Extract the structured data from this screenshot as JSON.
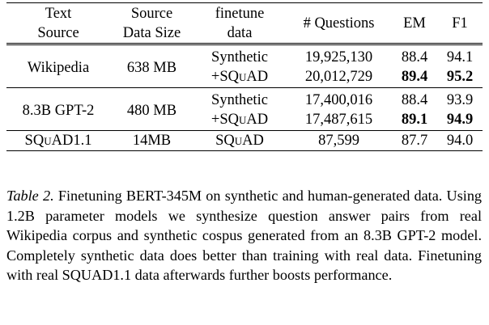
{
  "table": {
    "headers": [
      {
        "line1": "Text",
        "line2": "Source"
      },
      {
        "line1": "Source",
        "line2": "Data Size"
      },
      {
        "line1": "finetune",
        "line2": "data"
      },
      {
        "line1": "# Questions",
        "line2": ""
      },
      {
        "line1": "EM",
        "line2": ""
      },
      {
        "line1": "F1",
        "line2": ""
      }
    ],
    "groups": [
      {
        "source": "Wikipedia",
        "size": "638 MB",
        "rows": [
          {
            "data": "Synthetic",
            "questions": "19,925,130",
            "em": "88.4",
            "f1": "94.1",
            "bold": false
          },
          {
            "data": "+SQUAD",
            "questions": "20,012,729",
            "em": "89.4",
            "f1": "95.2",
            "bold": true
          }
        ]
      },
      {
        "source": "8.3B GPT-2",
        "size": "480 MB",
        "rows": [
          {
            "data": "Synthetic",
            "questions": "17,400,016",
            "em": "88.4",
            "f1": "93.9",
            "bold": false
          },
          {
            "data": "+SQUAD",
            "questions": "17,487,615",
            "em": "89.1",
            "f1": "94.9",
            "bold": true
          }
        ]
      },
      {
        "source": "SQUAD1.1",
        "size": "14MB",
        "rows": [
          {
            "data": "SQUAD",
            "questions": "87,599",
            "em": "87.7",
            "f1": "94.0",
            "bold": false
          }
        ]
      }
    ]
  },
  "caption": {
    "label": "Table 2.",
    "text": "Finetuning BERT-345M on synthetic and human-generated data. Using 1.2B parameter models we synthesize question answer pairs from real Wikipedia corpus and synthetic cospus generated from an 8.3B GPT-2 model. Completely synthetic data does better than training with real data.  Finetuning with real SQUAD1.1 data afterwards further boosts performance."
  }
}
